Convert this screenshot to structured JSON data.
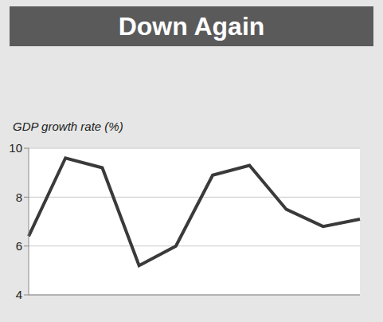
{
  "chart_data": {
    "type": "line",
    "title": "Down Again",
    "y_label": "GDP growth rate (%)",
    "categories": [
      null,
      null,
      null,
      null,
      null,
      null,
      null,
      null,
      null,
      null
    ],
    "values": [
      6.4,
      9.6,
      9.2,
      5.2,
      6.0,
      8.9,
      9.3,
      7.5,
      6.8,
      7.1
    ],
    "color": "#3a3a3a",
    "ylim": [
      4,
      10
    ],
    "yticks": [
      4,
      6,
      8,
      10
    ],
    "grid": true,
    "tick_labels": "y"
  }
}
